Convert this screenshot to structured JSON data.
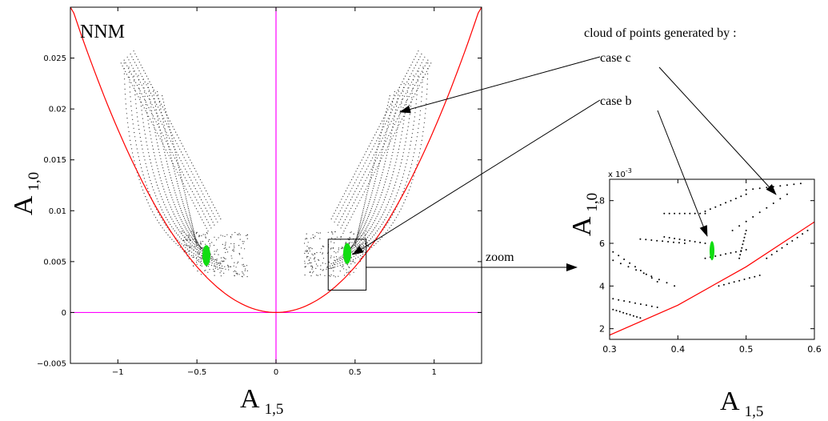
{
  "chart_data": [
    {
      "type": "scatter",
      "title": "NNM",
      "xlabel": {
        "main": "A",
        "sub": "1,5"
      },
      "ylabel": {
        "main": "A",
        "sub": "1,0"
      },
      "xlim": [
        -1.3,
        1.3
      ],
      "ylim": [
        -0.005,
        0.03
      ],
      "xticks": [
        -1,
        -0.5,
        0,
        0.5,
        1
      ],
      "xtick_labels": [
        "−1",
        "−0.5",
        "0",
        "0.5",
        "1"
      ],
      "yticks": [
        -0.005,
        0,
        0.005,
        0.01,
        0.015,
        0.02,
        0.025
      ],
      "ytick_labels": [
        "−0.005",
        "0",
        "0.005",
        "0.01",
        "0.015",
        "0.02",
        "0.025"
      ],
      "grid": false,
      "curve": {
        "x": [
          -1.3,
          -1.1,
          -0.9,
          -0.7,
          -0.5,
          -0.3,
          -0.15,
          0,
          0.15,
          0.3,
          0.5,
          0.7,
          0.9,
          1.1,
          1.3
        ],
        "y": [
          0.0305,
          0.0218,
          0.0146,
          0.0088,
          0.0045,
          0.0016,
          0.0004,
          0.0,
          0.0004,
          0.0016,
          0.0045,
          0.0088,
          0.0146,
          0.0218,
          0.0305
        ]
      },
      "case_c_clouds": [
        {
          "x_range": [
            -0.98,
            -0.14
          ],
          "y_range": [
            0.004,
            0.0245
          ]
        },
        {
          "x_range": [
            0.32,
            1.02
          ],
          "y_range": [
            0.003,
            0.0245
          ]
        }
      ],
      "case_b_clouds": [
        {
          "x": -0.44,
          "y": 0.0056
        },
        {
          "x": 0.45,
          "y": 0.0058
        }
      ],
      "zoom_box": {
        "x": [
          0.33,
          0.57
        ],
        "y": [
          0.0022,
          0.0072
        ]
      },
      "colors": {
        "curve": "#ff0000",
        "axes_lines": "#ff00ff",
        "case_c": "#000000",
        "case_b": "#00ee00"
      }
    },
    {
      "type": "scatter",
      "xlabel": {
        "main": "A",
        "sub": "1,5"
      },
      "ylabel": {
        "main": "A",
        "sub": "1,0"
      },
      "xlim": [
        0.3,
        0.6
      ],
      "ylim": [
        1.5,
        9
      ],
      "yscale_label": "x 10",
      "yscale_exp": "-3",
      "xticks": [
        0.3,
        0.4,
        0.5,
        0.6
      ],
      "xtick_labels": [
        "0.3",
        "0.4",
        "0.5",
        "0.6"
      ],
      "yticks": [
        2,
        4,
        6,
        8
      ],
      "ytick_labels": [
        "2",
        "4",
        "6",
        "8"
      ],
      "grid": false,
      "curve": {
        "x": [
          0.3,
          0.4,
          0.5,
          0.6
        ],
        "y": [
          1.7,
          3.1,
          4.9,
          7.0
        ]
      },
      "case_b_cloud": {
        "x": 0.45,
        "y_range": [
          5.2,
          6.1
        ]
      },
      "colors": {
        "curve": "#ff0000",
        "case_c": "#000000",
        "case_b": "#00ee00"
      }
    }
  ],
  "annotations": {
    "cloud_title": "cloud of points generated by :",
    "case_c": "case c",
    "case_b": "case b",
    "zoom": "zoom"
  }
}
